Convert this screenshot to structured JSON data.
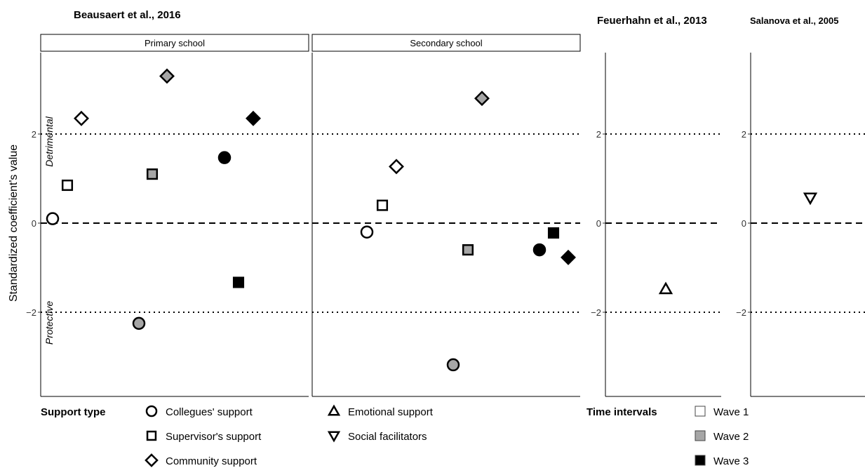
{
  "chart_data": {
    "type": "scatter",
    "ylabel": "Standardized coefficient's value",
    "ylim": [
      -3.8,
      3.8
    ],
    "yticks": [
      -2,
      0,
      2
    ],
    "reference_lines": [
      {
        "y": 0,
        "style": "dashed"
      },
      {
        "y": 2,
        "style": "dotted"
      },
      {
        "y": -2,
        "style": "dotted"
      }
    ],
    "region_labels": [
      "Detrimental",
      "Protective"
    ],
    "studies": [
      {
        "title": "Beausaert et al., 2016"
      },
      {
        "title": "Feuerhahn et al., 2013"
      },
      {
        "title": "Salanova et al., 2005"
      }
    ],
    "panels": [
      {
        "study": 0,
        "strip": "Primary school",
        "points": [
          {
            "support": "colleagues",
            "wave": 1,
            "y": 0.1
          },
          {
            "support": "supervisor",
            "wave": 1,
            "y": 0.85
          },
          {
            "support": "community",
            "wave": 1,
            "y": 2.35
          },
          {
            "support": "colleagues",
            "wave": 2,
            "y": -2.25
          },
          {
            "support": "supervisor",
            "wave": 2,
            "y": 1.1
          },
          {
            "support": "community",
            "wave": 2,
            "y": 3.3
          },
          {
            "support": "colleagues",
            "wave": 3,
            "y": 1.47
          },
          {
            "support": "supervisor",
            "wave": 3,
            "y": -1.33
          },
          {
            "support": "community",
            "wave": 3,
            "y": 2.35
          }
        ]
      },
      {
        "study": 0,
        "strip": "Secondary school",
        "points": [
          {
            "support": "colleagues",
            "wave": 1,
            "y": -0.2
          },
          {
            "support": "supervisor",
            "wave": 1,
            "y": 0.4
          },
          {
            "support": "community",
            "wave": 1,
            "y": 1.27
          },
          {
            "support": "colleagues",
            "wave": 2,
            "y": -3.18
          },
          {
            "support": "supervisor",
            "wave": 2,
            "y": -0.6
          },
          {
            "support": "community",
            "wave": 2,
            "y": 2.8
          },
          {
            "support": "colleagues",
            "wave": 3,
            "y": -0.6
          },
          {
            "support": "supervisor",
            "wave": 3,
            "y": -0.22
          },
          {
            "support": "community",
            "wave": 3,
            "y": -0.77
          }
        ]
      },
      {
        "study": 1,
        "strip": "",
        "points": [
          {
            "support": "emotional",
            "wave": 1,
            "y": -1.48
          }
        ]
      },
      {
        "study": 2,
        "strip": "",
        "points": [
          {
            "support": "social",
            "wave": 1,
            "y": 0.57
          }
        ]
      }
    ],
    "legend": {
      "support_title": "Support type",
      "support_items": [
        {
          "key": "colleagues",
          "label": "Collegues' support",
          "shape": "circle"
        },
        {
          "key": "supervisor",
          "label": "Supervisor's support",
          "shape": "square"
        },
        {
          "key": "community",
          "label": "Community support",
          "shape": "diamond"
        },
        {
          "key": "emotional",
          "label": "Emotional support",
          "shape": "triangle-up"
        },
        {
          "key": "social",
          "label": "Social facilitators",
          "shape": "triangle-down"
        }
      ],
      "time_title": "Time intervals",
      "time_items": [
        {
          "wave": 1,
          "label": "Wave 1",
          "color": "#ffffff"
        },
        {
          "wave": 2,
          "label": "Wave 2",
          "color": "#a6a6a6"
        },
        {
          "wave": 3,
          "label": "Wave 3",
          "color": "#000000"
        }
      ]
    }
  }
}
